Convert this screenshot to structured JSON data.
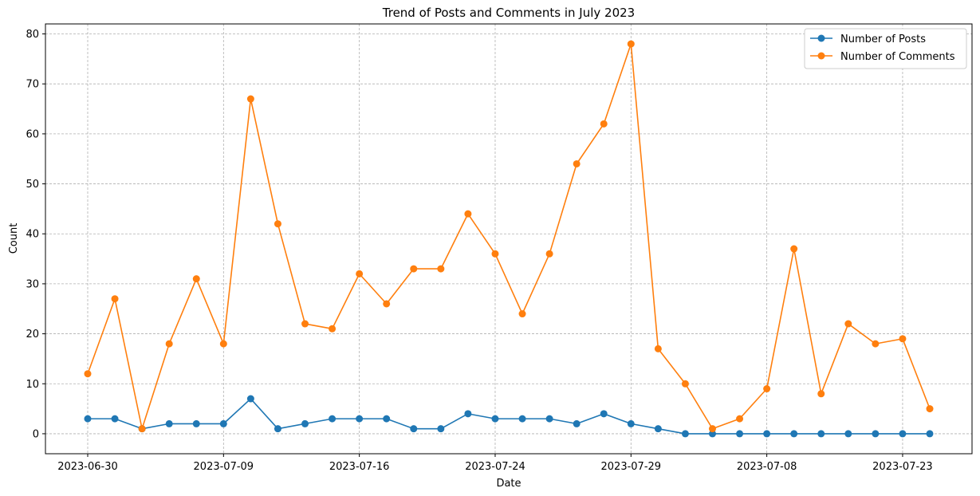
{
  "chart_data": {
    "type": "line",
    "title": "Trend of Posts and Comments in July 2023",
    "xlabel": "Date",
    "ylabel": "Count",
    "ylim": [
      -4,
      82
    ],
    "yticks": [
      0,
      10,
      20,
      30,
      40,
      50,
      60,
      70,
      80
    ],
    "x_tick_labels": [
      {
        "index": 0,
        "label": "2023-06-30"
      },
      {
        "index": 5,
        "label": "2023-07-09"
      },
      {
        "index": 10,
        "label": "2023-07-16"
      },
      {
        "index": 15,
        "label": "2023-07-24"
      },
      {
        "index": 20,
        "label": "2023-07-29"
      },
      {
        "index": 25,
        "label": "2023-07-08"
      },
      {
        "index": 30,
        "label": "2023-07-23"
      }
    ],
    "grid": true,
    "legend_position": "top-right",
    "series": [
      {
        "name": "Number of Posts",
        "color": "#1f77b4",
        "values": [
          3,
          3,
          1,
          2,
          2,
          2,
          7,
          1,
          2,
          3,
          3,
          3,
          1,
          1,
          4,
          3,
          3,
          3,
          2,
          4,
          2,
          1,
          0,
          0,
          0,
          0,
          0,
          0,
          0,
          0,
          0,
          0
        ]
      },
      {
        "name": "Number of Comments",
        "color": "#ff7f0e",
        "values": [
          12,
          27,
          1,
          18,
          31,
          18,
          67,
          42,
          22,
          21,
          32,
          26,
          33,
          33,
          44,
          36,
          24,
          36,
          54,
          62,
          78,
          17,
          10,
          1,
          3,
          9,
          37,
          8,
          22,
          18,
          19,
          5
        ]
      }
    ]
  }
}
